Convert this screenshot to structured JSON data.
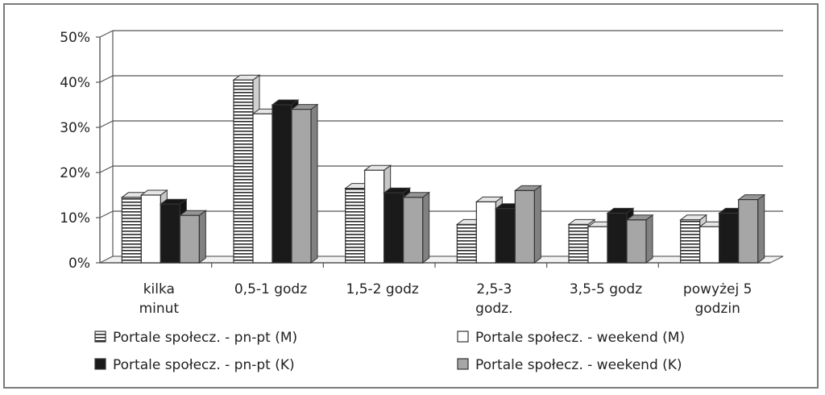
{
  "chart_data": {
    "type": "bar",
    "title": "",
    "xlabel": "",
    "ylabel": "",
    "ylim": [
      0,
      50
    ],
    "y_ticks": [
      "0%",
      "10%",
      "20%",
      "30%",
      "40%",
      "50%"
    ],
    "grid": true,
    "legend_position": "bottom",
    "categories": [
      [
        "kilka",
        "minut"
      ],
      [
        "0,5-1 godz"
      ],
      [
        "1,5-2 godz"
      ],
      [
        "2,5-3",
        "godz."
      ],
      [
        "3,5-5 godz"
      ],
      [
        "powyżej 5",
        "godzin"
      ]
    ],
    "series": [
      {
        "name": "Portale społecz. - pn-pt (M)",
        "pattern": "hstripe",
        "color": "#ffffff",
        "values": [
          14.5,
          40.5,
          16.5,
          8.5,
          8.5,
          9.5
        ]
      },
      {
        "name": "Portale społecz. - weekend (M)",
        "pattern": "solid",
        "color": "#ffffff",
        "values": [
          15,
          33,
          20.5,
          13.5,
          8,
          8
        ]
      },
      {
        "name": "Portale społecz. - pn-pt (K)",
        "pattern": "solid",
        "color": "#1a1a1a",
        "values": [
          13,
          35,
          15.5,
          12,
          11,
          11
        ]
      },
      {
        "name": "Portale społecz. - weekend (K)",
        "pattern": "solid",
        "color": "#a6a6a6",
        "values": [
          10.5,
          34,
          14.5,
          16,
          9.5,
          14
        ]
      }
    ]
  }
}
